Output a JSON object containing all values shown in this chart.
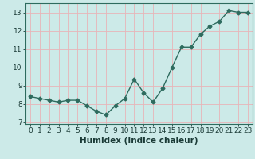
{
  "x": [
    0,
    1,
    2,
    3,
    4,
    5,
    6,
    7,
    8,
    9,
    10,
    11,
    12,
    13,
    14,
    15,
    16,
    17,
    18,
    19,
    20,
    21,
    22,
    23
  ],
  "y": [
    8.4,
    8.3,
    8.2,
    8.1,
    8.2,
    8.2,
    7.9,
    7.6,
    7.4,
    7.9,
    8.3,
    9.35,
    8.6,
    8.1,
    8.85,
    10.0,
    11.1,
    11.1,
    11.8,
    12.25,
    12.5,
    13.1,
    13.0,
    13.0
  ],
  "line_color": "#2e6b5e",
  "marker": "D",
  "marker_size": 2.5,
  "bg_color": "#cceae8",
  "grid_color_major": "#e8b4b8",
  "grid_color_minor": "#e8b4b8",
  "xlabel": "Humidex (Indice chaleur)",
  "xlim": [
    -0.5,
    23.5
  ],
  "ylim": [
    6.9,
    13.5
  ],
  "yticks": [
    7,
    8,
    9,
    10,
    11,
    12,
    13
  ],
  "xticks": [
    0,
    1,
    2,
    3,
    4,
    5,
    6,
    7,
    8,
    9,
    10,
    11,
    12,
    13,
    14,
    15,
    16,
    17,
    18,
    19,
    20,
    21,
    22,
    23
  ],
  "xtick_labels": [
    "0",
    "1",
    "2",
    "3",
    "4",
    "5",
    "6",
    "7",
    "8",
    "9",
    "10",
    "11",
    "12",
    "13",
    "14",
    "15",
    "16",
    "17",
    "18",
    "19",
    "20",
    "21",
    "22",
    "23"
  ],
  "tick_fontsize": 6.5,
  "xlabel_fontsize": 7.5,
  "line_width": 1.0
}
